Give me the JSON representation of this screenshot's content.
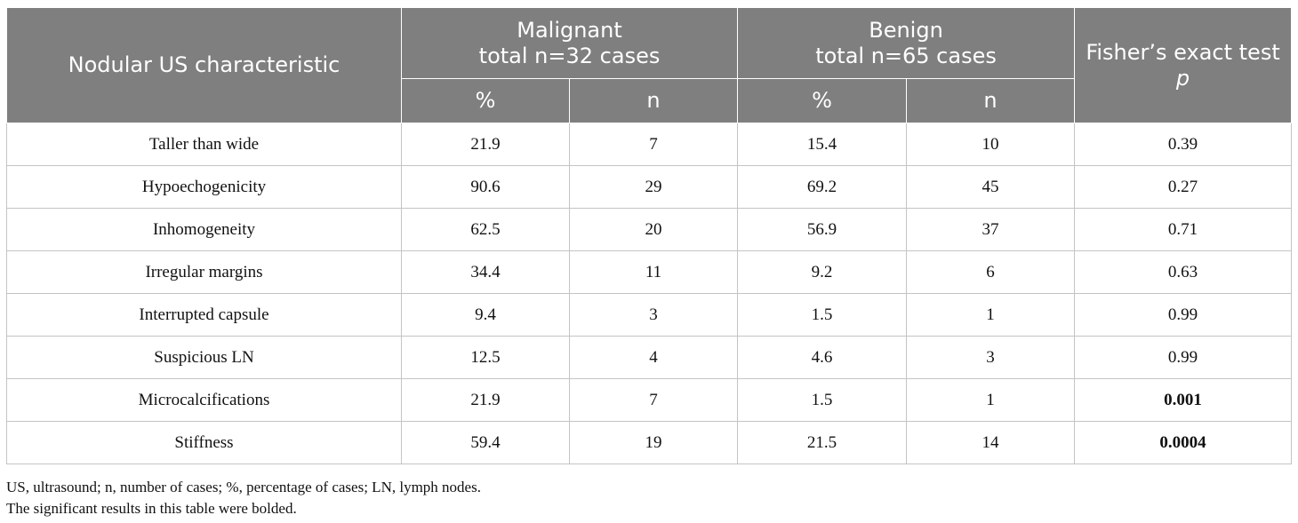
{
  "header": {
    "characteristic": "Nodular US characteristic",
    "malignant_line1": "Malignant",
    "malignant_line2": "total n=32 cases",
    "benign_line1": "Benign",
    "benign_line2": "total n=65 cases",
    "test_line1": "Fisher’s exact test",
    "test_line2": "p",
    "pct": "%",
    "n": "n"
  },
  "rows": [
    {
      "name": "Taller than wide",
      "mal_pct": "21.9",
      "mal_n": "7",
      "ben_pct": "15.4",
      "ben_n": "10",
      "p": "0.39",
      "bold": false
    },
    {
      "name": "Hypoechogenicity",
      "mal_pct": "90.6",
      "mal_n": "29",
      "ben_pct": "69.2",
      "ben_n": "45",
      "p": "0.27",
      "bold": false
    },
    {
      "name": "Inhomogeneity",
      "mal_pct": "62.5",
      "mal_n": "20",
      "ben_pct": "56.9",
      "ben_n": "37",
      "p": "0.71",
      "bold": false
    },
    {
      "name": "Irregular margins",
      "mal_pct": "34.4",
      "mal_n": "11",
      "ben_pct": "9.2",
      "ben_n": "6",
      "p": "0.63",
      "bold": false
    },
    {
      "name": "Interrupted capsule",
      "mal_pct": "9.4",
      "mal_n": "3",
      "ben_pct": "1.5",
      "ben_n": "1",
      "p": "0.99",
      "bold": false
    },
    {
      "name": "Suspicious LN",
      "mal_pct": "12.5",
      "mal_n": "4",
      "ben_pct": "4.6",
      "ben_n": "3",
      "p": "0.99",
      "bold": false
    },
    {
      "name": "Microcalcifications",
      "mal_pct": "21.9",
      "mal_n": "7",
      "ben_pct": "1.5",
      "ben_n": "1",
      "p": "0.001",
      "bold": true
    },
    {
      "name": "Stiffness",
      "mal_pct": "59.4",
      "mal_n": "19",
      "ben_pct": "21.5",
      "ben_n": "14",
      "p": "0.0004",
      "bold": true
    }
  ],
  "footnotes": {
    "abbreviations": "US, ultrasound; n, number of cases; %, percentage of cases; LN, lymph nodes.",
    "significance": "The significant results in this table were bolded."
  }
}
